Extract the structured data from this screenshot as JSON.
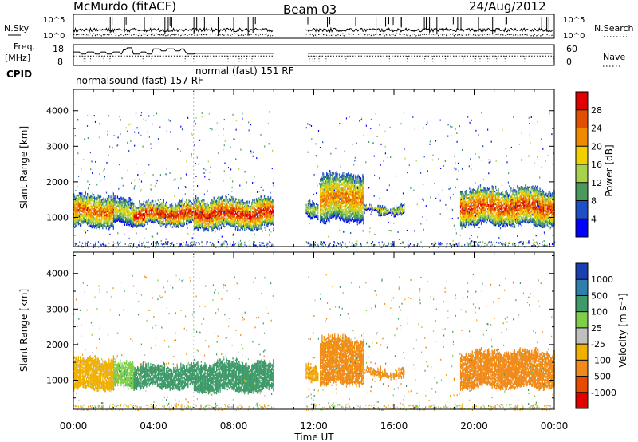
{
  "header": {
    "title": "McMurdo (fitACF)",
    "beam": "Beam 03",
    "date": "24/Aug/2012"
  },
  "summary": {
    "nsky_label": "N.Sky",
    "nsearch_label": "N.Search",
    "noise_ticks": [
      "10^5",
      "10^0"
    ],
    "freq_label_1": "Freq.",
    "freq_label_2": "[MHz]",
    "freq_ticks": [
      "18",
      "8"
    ],
    "nave_label": "Nave",
    "nave_ticks": [
      "60",
      "0"
    ],
    "cpid_label": "CPID",
    "cpid_entries": [
      {
        "text": "normalsound (fast) 157 RF",
        "start_hour": 0.0
      },
      {
        "text": "normal (fast) 151 RF",
        "start_hour": 6.0
      }
    ]
  },
  "x_axis": {
    "label": "Time UT",
    "tick_labels": [
      "00:00",
      "04:00",
      "08:00",
      "12:00",
      "16:00",
      "20:00",
      "00:00"
    ],
    "tick_hours": [
      0,
      4,
      8,
      12,
      16,
      20,
      24
    ],
    "range_hours": [
      0,
      24
    ]
  },
  "panels": [
    {
      "ylabel": "Slant Range [km]",
      "yticks": [
        "1000",
        "2000",
        "3000",
        "4000"
      ],
      "colorbar": {
        "label": "Power [dB]",
        "tick_labels": [
          "4",
          "8",
          "12",
          "16",
          "20",
          "24",
          "28"
        ],
        "colors": [
          "#0000ff",
          "#1e4fc4",
          "#4a9a60",
          "#a8d24a",
          "#f0d000",
          "#f08a00",
          "#e05000",
          "#e00000"
        ]
      }
    },
    {
      "ylabel": "Slant Range [km]",
      "yticks": [
        "1000",
        "2000",
        "3000",
        "4000"
      ],
      "colorbar": {
        "label": "Velocity [m s⁻¹]",
        "tick_labels": [
          "1000",
          "500",
          "100",
          "25",
          "-25",
          "-100",
          "-500",
          "-1000"
        ],
        "colors": [
          "#1a3fb0",
          "#2f7fae",
          "#3f9a6a",
          "#7fcf4a",
          "#c0c0c0",
          "#f0b000",
          "#f08a1a",
          "#e84a00",
          "#e00000"
        ]
      }
    }
  ],
  "chart_data": [
    {
      "type": "heatmap",
      "title": "Power",
      "xlabel": "Time UT",
      "ylabel": "Slant Range [km]",
      "xlim": [
        0,
        24
      ],
      "ylim": [
        180,
        4600
      ],
      "value_label": "Power [dB]",
      "value_range": [
        0,
        30
      ],
      "data_gap_hours": [
        10.0,
        11.6
      ],
      "echo_regions": [
        {
          "t0": 0.0,
          "t1": 2.0,
          "r0": 650,
          "r1": 1700,
          "peak": 26
        },
        {
          "t0": 2.0,
          "t1": 3.0,
          "r0": 700,
          "r1": 1600,
          "peak": 18
        },
        {
          "t0": 3.0,
          "t1": 6.0,
          "r0": 700,
          "r1": 1500,
          "peak": 30
        },
        {
          "t0": 6.0,
          "t1": 10.0,
          "r0": 600,
          "r1": 1600,
          "peak": 30
        },
        {
          "t0": 11.6,
          "t1": 12.2,
          "r0": 900,
          "r1": 1500,
          "peak": 16
        },
        {
          "t0": 12.3,
          "t1": 14.5,
          "r0": 800,
          "r1": 2300,
          "peak": 24
        },
        {
          "t0": 14.5,
          "t1": 16.5,
          "r0": 1000,
          "r1": 1400,
          "peak": 18
        },
        {
          "t0": 19.3,
          "t1": 24.0,
          "r0": 700,
          "r1": 1900,
          "peak": 28
        }
      ]
    },
    {
      "type": "heatmap",
      "title": "Velocity",
      "xlabel": "Time UT",
      "ylabel": "Slant Range [km]",
      "xlim": [
        0,
        24
      ],
      "ylim": [
        180,
        4600
      ],
      "value_label": "Velocity [m s⁻¹]",
      "value_range": [
        -1000,
        1000
      ],
      "data_gap_hours": [
        10.0,
        11.6
      ],
      "echo_regions": [
        {
          "t0": 0.0,
          "t1": 2.0,
          "r0": 650,
          "r1": 1700,
          "vel": -60
        },
        {
          "t0": 2.0,
          "t1": 3.0,
          "r0": 700,
          "r1": 1600,
          "vel": 60
        },
        {
          "t0": 3.0,
          "t1": 6.0,
          "r0": 700,
          "r1": 1500,
          "vel": 200
        },
        {
          "t0": 6.0,
          "t1": 10.0,
          "r0": 600,
          "r1": 1600,
          "vel": 300
        },
        {
          "t0": 11.6,
          "t1": 12.2,
          "r0": 900,
          "r1": 1500,
          "vel": -80
        },
        {
          "t0": 12.3,
          "t1": 14.5,
          "r0": 800,
          "r1": 2300,
          "vel": -150
        },
        {
          "t0": 14.5,
          "t1": 16.5,
          "r0": 1000,
          "r1": 1400,
          "vel": -150
        },
        {
          "t0": 19.3,
          "t1": 24.0,
          "r0": 700,
          "r1": 1900,
          "vel": -180
        }
      ]
    }
  ]
}
